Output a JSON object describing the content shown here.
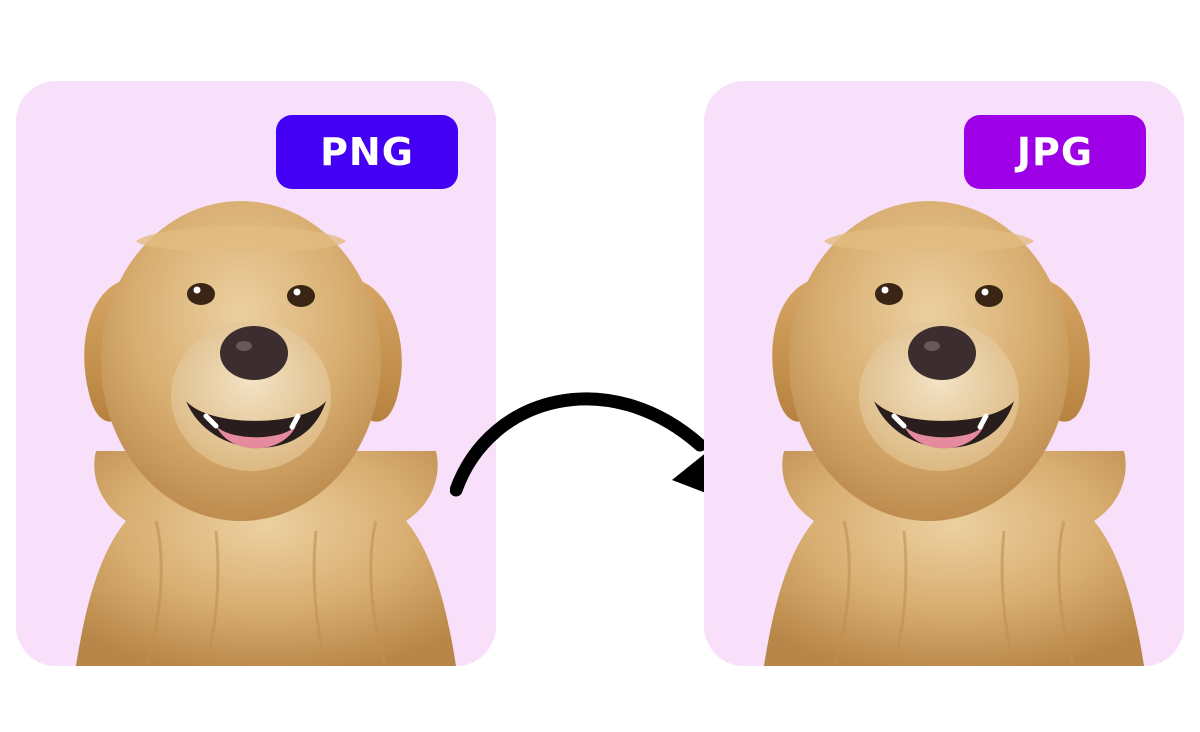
{
  "colors": {
    "card_background": "#f8e0fb",
    "badge_png": "#4400f5",
    "badge_jpg": "#9d00e6",
    "arrow": "#000000",
    "fur_light": "#e6c48e",
    "fur_mid": "#d3a667",
    "fur_dark": "#b98547",
    "nose": "#3c2e2e",
    "tongue": "#e58b9d"
  },
  "cards": [
    {
      "name": "source",
      "badge_label": "PNG",
      "badge_color": "#4400f5",
      "image": "golden-retriever-portrait"
    },
    {
      "name": "result",
      "badge_label": "JPG",
      "badge_color": "#9d00e6",
      "image": "golden-retriever-portrait"
    }
  ],
  "connector_icon": "curved-arrow-icon"
}
